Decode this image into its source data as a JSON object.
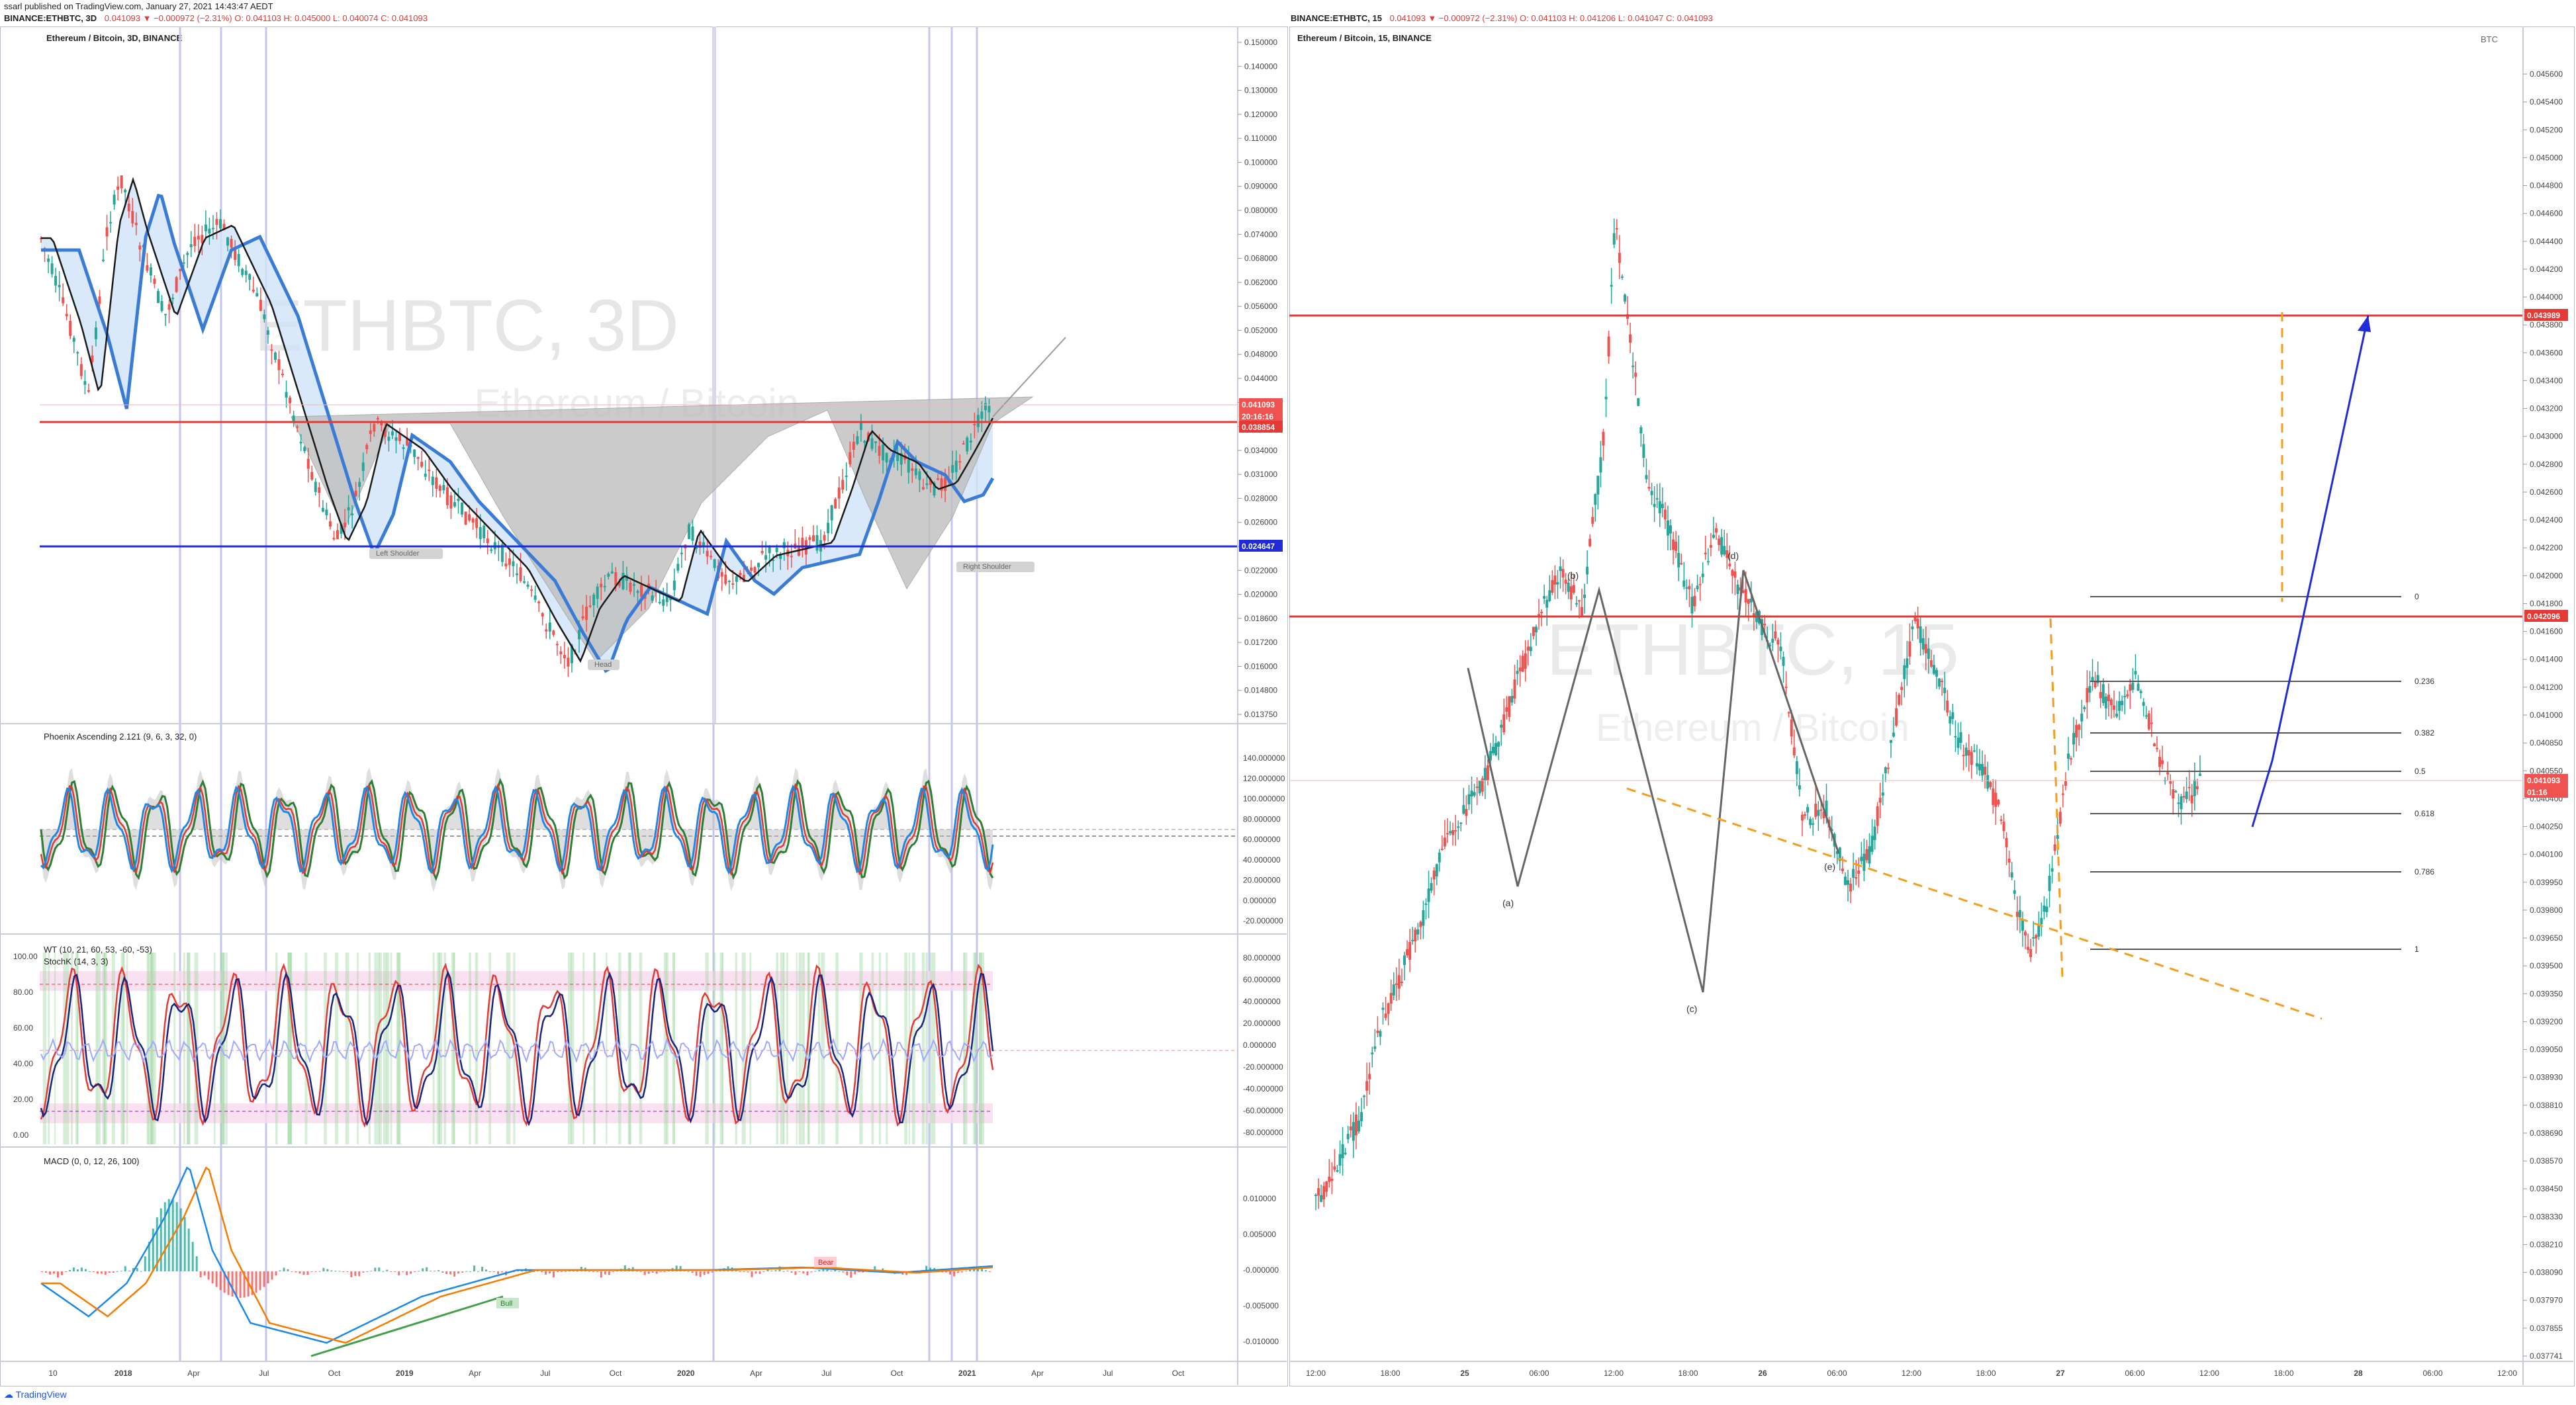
{
  "header": {
    "published_line": "ssarl published on TradingView.com, January 27, 2021 14:43:47 AEDT",
    "left_symbol": "BINANCE:ETHBTC, 3D",
    "left_ohlc": "0.041093 ▼ −0.000972 (−2.31%) O: 0.041103 H: 0.045000 L: 0.040074 C: 0.041093",
    "right_symbol": "BINANCE:ETHBTC, 15",
    "right_ohlc": "0.041093 ▼ −0.000972 (−2.31%) O: 0.041103 H: 0.041206 L: 0.041047 C: 0.041093"
  },
  "left_chart": {
    "title": "Ethereum / Bitcoin, 3D, BINANCE",
    "watermark_symbol": "ETHBTC, 3D",
    "watermark_name": "Ethereum / Bitcoin",
    "price_ticks": [
      "0.150000",
      "0.140000",
      "0.130000",
      "0.120000",
      "0.110000",
      "0.100000",
      "0.090000",
      "0.080000",
      "0.074000",
      "0.068000",
      "0.062000",
      "0.056000",
      "0.052000",
      "0.048000",
      "0.044000",
      "0.040000",
      "0.037000",
      "0.034000",
      "0.031000",
      "0.028000",
      "0.026000",
      "0.024000",
      "0.022000",
      "0.020000",
      "0.018600",
      "0.017200",
      "0.016000",
      "0.014800",
      "0.013750"
    ],
    "price_labels": {
      "last": "0.041093",
      "countdown": "20:16:16",
      "resistance": "0.038854",
      "support": "0.024647"
    },
    "resistance_color": "#e53935",
    "support_color": "#1e2bd6",
    "pattern_labels": [
      "Left Shoulder",
      "Head",
      "Right Shoulder"
    ],
    "x_ticks": [
      "10",
      "2018",
      "Apr",
      "Jul",
      "Oct",
      "2019",
      "Apr",
      "Jul",
      "Oct",
      "2020",
      "Apr",
      "Jul",
      "Oct",
      "2021",
      "Apr",
      "Jul",
      "Oct"
    ],
    "phoenix": {
      "title": "Phoenix Ascending 2.121 (9, 6, 3, 32, 0)",
      "ticks": [
        "140.000000",
        "120.000000",
        "100.000000",
        "80.000000",
        "60.000000",
        "40.000000",
        "20.000000",
        "0.000000",
        "-20.000000"
      ]
    },
    "wt": {
      "title1": "WT (10, 21, 60, 53, -60, -53)",
      "title2": "StochK (14, 3, 3)",
      "left_ticks": [
        "100.00",
        "80.00",
        "60.00",
        "40.00",
        "20.00",
        "0.00"
      ],
      "right_ticks": [
        "80.000000",
        "60.000000",
        "40.000000",
        "20.000000",
        "0.000000",
        "-20.000000",
        "-40.000000",
        "-60.000000",
        "-80.000000"
      ]
    },
    "macd": {
      "title": "MACD (0, 0, 12, 26, 100)",
      "ticks": [
        "0.010000",
        "0.005000",
        "-0.000000",
        "-0.005000",
        "-0.010000"
      ],
      "bull_label": "Bull",
      "bear_label": "Bear"
    }
  },
  "right_chart": {
    "title": "Ethereum / Bitcoin, 15, BINANCE",
    "watermark_symbol": "ETHBTC, 15",
    "watermark_name": "Ethereum / Bitcoin",
    "currency": "BTC",
    "price_ticks": [
      "0.045600",
      "0.045400",
      "0.045200",
      "0.045000",
      "0.044800",
      "0.044600",
      "0.044400",
      "0.044200",
      "0.044000",
      "0.043800",
      "0.043600",
      "0.043400",
      "0.043200",
      "0.043000",
      "0.042800",
      "0.042600",
      "0.042400",
      "0.042200",
      "0.042000",
      "0.041800",
      "0.041600",
      "0.041400",
      "0.041200",
      "0.041000",
      "0.040850",
      "0.040550",
      "0.040400",
      "0.040250",
      "0.040100",
      "0.039950",
      "0.039800",
      "0.039650",
      "0.039500",
      "0.039350",
      "0.039200",
      "0.039050",
      "0.038930",
      "0.038810",
      "0.038690",
      "0.038570",
      "0.038450",
      "0.038330",
      "0.038210",
      "0.038090",
      "0.037970",
      "0.037855",
      "0.037741"
    ],
    "price_labels": {
      "target": "0.043989",
      "level": "0.042096",
      "last": "0.041093",
      "countdown": "01:16"
    },
    "fib_levels": [
      "0",
      "0.236",
      "0.382",
      "0.5",
      "0.618",
      "0.786",
      "1"
    ],
    "wave_labels": [
      "(a)",
      "(b)",
      "(c)",
      "(d)",
      "(e)"
    ],
    "x_ticks": [
      "12:00",
      "18:00",
      "25",
      "06:00",
      "12:00",
      "18:00",
      "26",
      "06:00",
      "12:00",
      "18:00",
      "27",
      "06:00",
      "12:00",
      "18:00",
      "28",
      "06:00",
      "12:00"
    ]
  },
  "footer": {
    "brand": "TradingView"
  },
  "colors": {
    "up": "#26a69a",
    "down": "#ef5350",
    "ma_blue": "#2962ff",
    "fib_gray": "#555555",
    "projection_blue": "#1e2bd6",
    "dash_orange": "#f59d1f"
  }
}
